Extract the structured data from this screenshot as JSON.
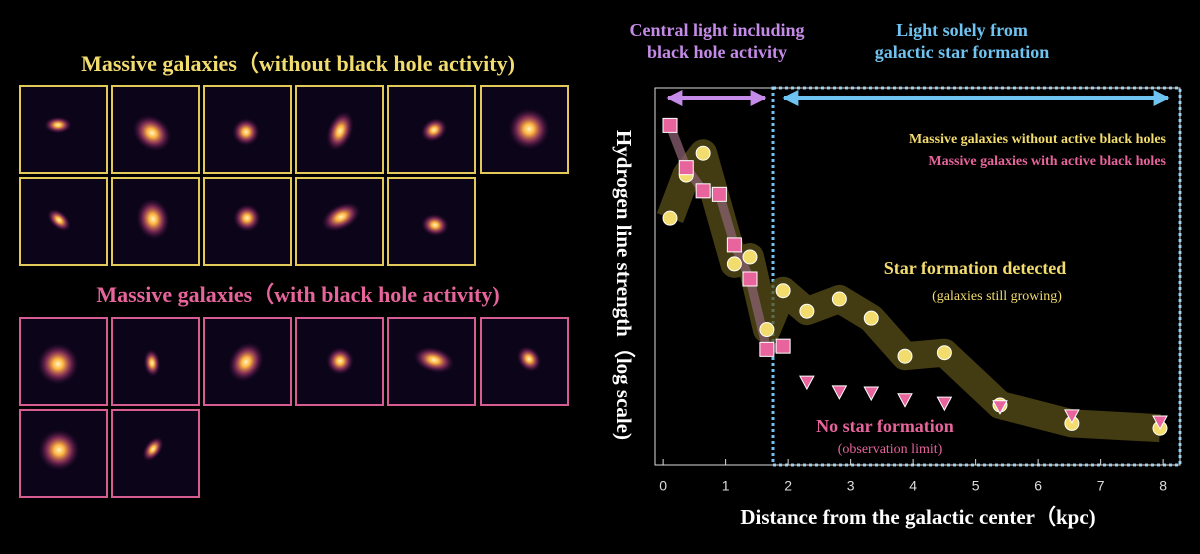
{
  "left_panel": {
    "top_title": "Massive galaxies（without black hole activity)",
    "bottom_title": "Massive galaxies（with black hole activity)"
  },
  "chart_data": {
    "type": "scatter",
    "region_labels": [
      [
        "Central light including",
        "black hole activity"
      ],
      [
        "Light solely from",
        "galactic star formation"
      ]
    ],
    "annotations": [
      "Star formation detected",
      "(galaxies still growing)",
      "No star formation",
      "(observation limit)"
    ],
    "x_label": "Distance from the galactic center（kpc)",
    "y_label": "Hydrogen line strength（log scale)",
    "log_scale_y": true,
    "xlim": [
      -0.13,
      8.27
    ],
    "ylim": [
      0.083,
      17.7
    ],
    "xticks": [
      0,
      1,
      2,
      3,
      4,
      5,
      6,
      7,
      8
    ],
    "series": [
      {
        "name": "Massive galaxies without active black holes",
        "color": "#f3dc6e",
        "marker": "circle",
        "x": [
          0.11,
          0.37,
          0.64,
          1.14,
          1.39,
          1.66,
          1.92,
          2.3,
          2.82,
          3.33,
          3.87,
          4.5,
          5.39,
          6.54,
          7.95
        ],
        "values": [
          2.78,
          5.13,
          7.0,
          1.45,
          1.6,
          0.57,
          0.99,
          0.74,
          0.88,
          0.67,
          0.39,
          0.41,
          0.195,
          0.15,
          0.14
        ]
      },
      {
        "name": "Massive galaxies with active black holes",
        "color": "#e8649c",
        "marker": "square",
        "x": [
          0.11,
          0.37,
          0.64,
          0.9,
          1.14,
          1.39,
          1.66,
          1.92
        ],
        "values": [
          10.4,
          5.7,
          4.1,
          3.9,
          1.9,
          1.17,
          0.43,
          0.45
        ]
      }
    ],
    "upper_limits": {
      "color": "#e8649c",
      "marker": "triangle",
      "x": [
        2.3,
        2.82,
        3.33,
        3.87,
        4.5,
        5.39,
        6.54,
        7.95
      ],
      "values": [
        0.27,
        0.235,
        0.231,
        0.21,
        0.2,
        0.19,
        0.167,
        0.153
      ]
    }
  }
}
